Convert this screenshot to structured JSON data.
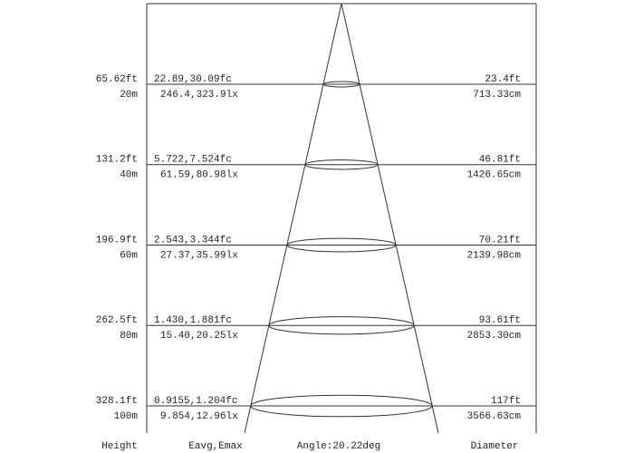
{
  "rows": [
    {
      "height_ft": "65.62ft",
      "height_m": "20m",
      "fc": "22.89,30.09fc",
      "lx": "246.4,323.9lx",
      "diameter_ft": "23.4ft",
      "diameter_cm": "713.33cm"
    },
    {
      "height_ft": "131.2ft",
      "height_m": "40m",
      "fc": "5.722,7.524fc",
      "lx": "61.59,80.98lx",
      "diameter_ft": "46.81ft",
      "diameter_cm": "1426.65cm"
    },
    {
      "height_ft": "196.9ft",
      "height_m": "60m",
      "fc": "2.543,3.344fc",
      "lx": "27.37,35.99lx",
      "diameter_ft": "70.21ft",
      "diameter_cm": "2139.98cm"
    },
    {
      "height_ft": "262.5ft",
      "height_m": "80m",
      "fc": "1.430,1.881fc",
      "lx": "15.40,20.25lx",
      "diameter_ft": "93.61ft",
      "diameter_cm": "2853.30cm"
    },
    {
      "height_ft": "328.1ft",
      "height_m": "100m",
      "fc": "0.9155,1.204fc",
      "lx": "9.854,12.96lx",
      "diameter_ft": "117ft",
      "diameter_cm": "3566.63cm"
    }
  ],
  "footer": {
    "height": "Height",
    "eavg_emax": "Eavg,Emax",
    "angle": "Angle:20.22deg",
    "diameter": "Diameter"
  }
}
